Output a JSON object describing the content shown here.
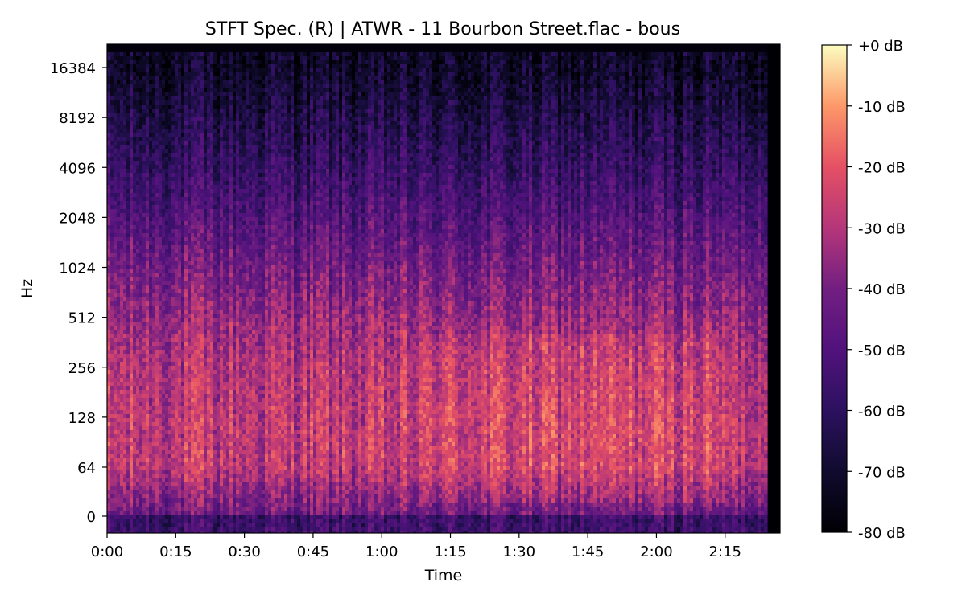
{
  "chart_data": {
    "type": "heatmap",
    "title": "STFT Spec. (R) | ATWR - 11 Bourbon Street.flac - bous",
    "xlabel": "Time",
    "ylabel": "Hz",
    "colormap": "magma",
    "x_ticks": [
      {
        "seconds": 0,
        "label": "0:00"
      },
      {
        "seconds": 15,
        "label": "0:15"
      },
      {
        "seconds": 30,
        "label": "0:30"
      },
      {
        "seconds": 45,
        "label": "0:45"
      },
      {
        "seconds": 60,
        "label": "1:00"
      },
      {
        "seconds": 75,
        "label": "1:15"
      },
      {
        "seconds": 90,
        "label": "1:30"
      },
      {
        "seconds": 105,
        "label": "1:45"
      },
      {
        "seconds": 120,
        "label": "2:00"
      },
      {
        "seconds": 135,
        "label": "2:15"
      }
    ],
    "xlim_seconds": [
      0,
      147
    ],
    "signal_end_seconds": 144,
    "y_scale": "log2",
    "y_ticks": [
      {
        "hz": 0,
        "label": "0"
      },
      {
        "hz": 64,
        "label": "64"
      },
      {
        "hz": 128,
        "label": "128"
      },
      {
        "hz": 256,
        "label": "256"
      },
      {
        "hz": 512,
        "label": "512"
      },
      {
        "hz": 1024,
        "label": "1024"
      },
      {
        "hz": 2048,
        "label": "2048"
      },
      {
        "hz": 4096,
        "label": "4096"
      },
      {
        "hz": 8192,
        "label": "8192"
      },
      {
        "hz": 16384,
        "label": "16384"
      }
    ],
    "colorbar": {
      "range_db": [
        -80,
        0
      ],
      "ticks": [
        {
          "db": 0,
          "label": "+0 dB"
        },
        {
          "db": -10,
          "label": "-10 dB"
        },
        {
          "db": -20,
          "label": "-20 dB"
        },
        {
          "db": -30,
          "label": "-30 dB"
        },
        {
          "db": -40,
          "label": "-40 dB"
        },
        {
          "db": -50,
          "label": "-50 dB"
        },
        {
          "db": -60,
          "label": "-60 dB"
        },
        {
          "db": -70,
          "label": "-70 dB"
        },
        {
          "db": -80,
          "label": "-80 dB"
        }
      ]
    },
    "level_profile_db": [
      {
        "hz": 20,
        "db": -55
      },
      {
        "hz": 64,
        "db": -28
      },
      {
        "hz": 128,
        "db": -28
      },
      {
        "hz": 256,
        "db": -30
      },
      {
        "hz": 512,
        "db": -35
      },
      {
        "hz": 1024,
        "db": -42
      },
      {
        "hz": 2048,
        "db": -50
      },
      {
        "hz": 4096,
        "db": -58
      },
      {
        "hz": 8192,
        "db": -65
      },
      {
        "hz": 16384,
        "db": -72
      }
    ]
  }
}
